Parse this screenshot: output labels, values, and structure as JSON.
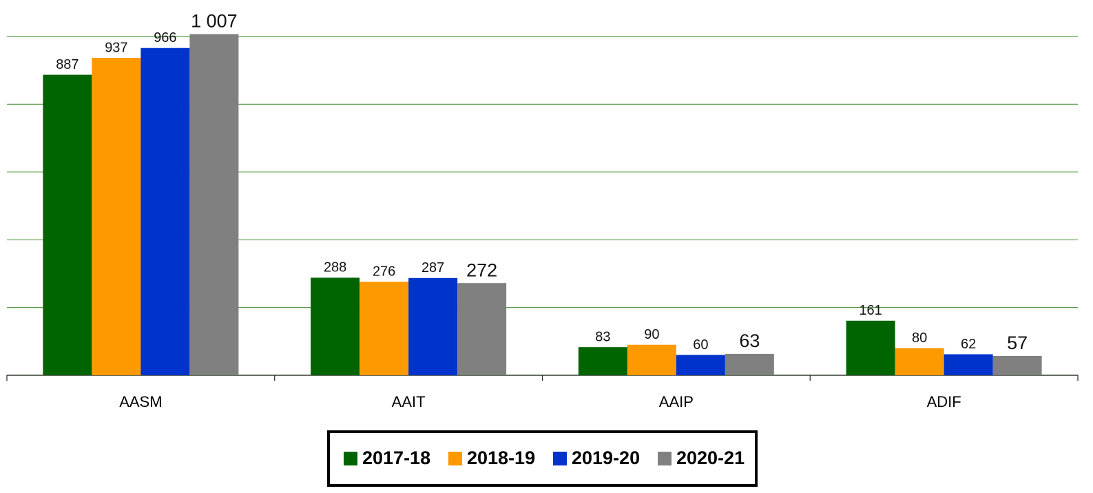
{
  "chart_data": {
    "type": "bar",
    "categories": [
      "AASM",
      "AAIT",
      "AAIP",
      "ADIF"
    ],
    "series": [
      {
        "name": "2017-18",
        "color": "#006400",
        "values": [
          887,
          288,
          83,
          161
        ]
      },
      {
        "name": "2018-19",
        "color": "#ff9900",
        "values": [
          937,
          276,
          90,
          80
        ]
      },
      {
        "name": "2019-20",
        "color": "#0033cc",
        "values": [
          966,
          287,
          60,
          62
        ]
      },
      {
        "name": "2020-21",
        "color": "#808080",
        "values": [
          1007,
          272,
          63,
          57
        ],
        "value_labels": [
          "1 007",
          "272",
          "63",
          "57"
        ]
      }
    ],
    "ylim": [
      0,
      1000
    ],
    "yticks": [
      0,
      200,
      400,
      600,
      800,
      1000
    ],
    "grid": true,
    "legend": "bottom"
  }
}
